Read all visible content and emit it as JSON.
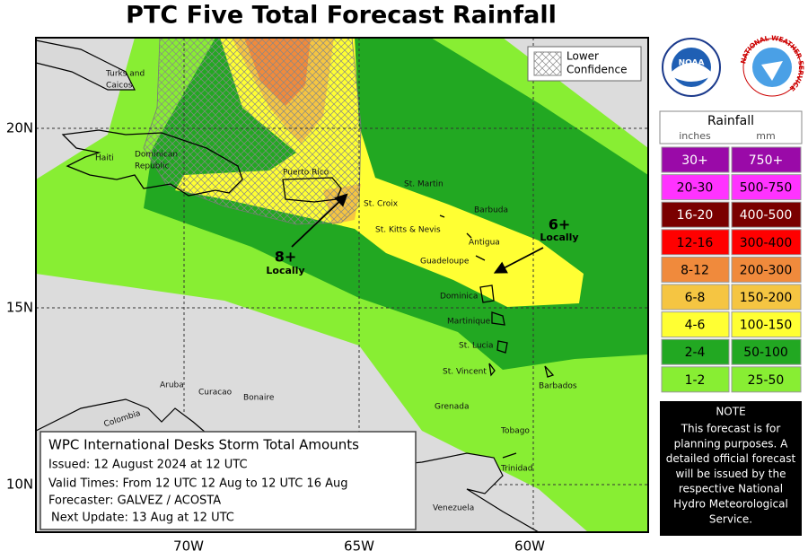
{
  "header": {
    "title": "PTC Five Total Forecast Rainfall"
  },
  "map": {
    "lat_labels": [
      "20N",
      "15N",
      "10N"
    ],
    "lon_labels": [
      "70W",
      "65W",
      "60W"
    ],
    "places": [
      "Turks and",
      "Caicos",
      "Haiti",
      "Dominican",
      "Republic",
      "Puerto Rico",
      "St. Martin",
      "St. Croix",
      "Barbuda",
      "St. Kitts & Nevis",
      "Antigua",
      "Guadeloupe",
      "Dominica",
      "Martinique",
      "St. Lucia",
      "St. Vincent",
      "Barbados",
      "Grenada",
      "Aruba",
      "Curacao",
      "Bonaire",
      "Colombia",
      "Tobago",
      "Trinidad",
      "Venezuela"
    ],
    "annotations": [
      {
        "amount": "8+",
        "note": "Locally"
      },
      {
        "amount": "6+",
        "note": "Locally"
      }
    ],
    "hatch_legend": [
      "Lower",
      "Confidence"
    ]
  },
  "logos": {
    "noaa": "NOAA",
    "nws": "NATIONAL WEATHER SERVICE"
  },
  "legend": {
    "title": "Rainfall",
    "units": [
      "inches",
      "mm"
    ],
    "rows": [
      {
        "inches": "30+",
        "mm": "750+",
        "color": "#9a0aa8",
        "text_color": "#ffffff"
      },
      {
        "inches": "20-30",
        "mm": "500-750",
        "color": "#ff33ff",
        "text_color": "#000000"
      },
      {
        "inches": "16-20",
        "mm": "400-500",
        "color": "#7a0000",
        "text_color": "#ffffff"
      },
      {
        "inches": "12-16",
        "mm": "300-400",
        "color": "#ff0000",
        "text_color": "#000000"
      },
      {
        "inches": "8-12",
        "mm": "200-300",
        "color": "#f08a3c",
        "text_color": "#000000"
      },
      {
        "inches": "6-8",
        "mm": "150-200",
        "color": "#f5c542",
        "text_color": "#000000"
      },
      {
        "inches": "4-6",
        "mm": "100-150",
        "color": "#ffff33",
        "text_color": "#000000"
      },
      {
        "inches": "2-4",
        "mm": "50-100",
        "color": "#22a822",
        "text_color": "#000000"
      },
      {
        "inches": "1-2",
        "mm": "25-50",
        "color": "#88ee33",
        "text_color": "#000000"
      }
    ]
  },
  "note": {
    "title": "NOTE",
    "lines": [
      "This forecast is for",
      "planning purposes. A",
      "detailed official forecast",
      "will be issued by the",
      "respective National",
      "Hydro Meteorological",
      "Service."
    ]
  },
  "info": {
    "title": "WPC International Desks Storm Total Amounts",
    "lines": [
      "Issued:  12 August 2024 at 12 UTC",
      "Valid Times:  From 12 UTC 12 Aug  to  12 UTC 16 Aug",
      "Forecaster:  GALVEZ / ACOSTA",
      "Next Update: 13 Aug at 12 UTC"
    ]
  }
}
